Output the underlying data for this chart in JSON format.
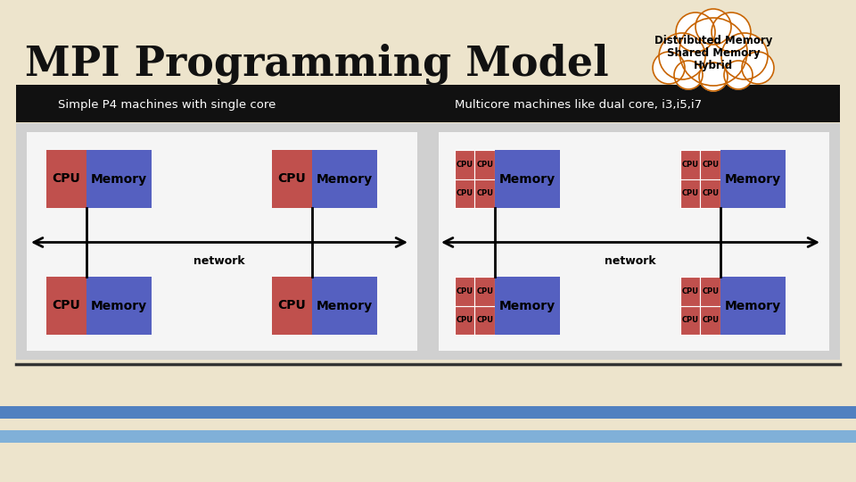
{
  "title": "MPI Programming Model",
  "cloud_lines": [
    "Distributed Memory",
    "Shared Memory",
    "Hybrid"
  ],
  "subtitle_left": "Simple P4 machines with single core",
  "subtitle_right": "Multicore machines like dual core, i3,i5,i7",
  "bg_color": "#ede4cc",
  "black_bar_color": "#111111",
  "panel_bg": "#d0d0d0",
  "white_panel": "#f5f5f5",
  "cpu_color": "#c0504d",
  "memory_color": "#5560c0",
  "title_color": "#111111",
  "subtitle_text_color": "#ffffff",
  "cloud_border_color": "#c86400",
  "cloud_fill": "#ffffff",
  "bottom_stripe_blue": "#5080c0",
  "bottom_stripe_light": "#80b0d8",
  "sep_line_color": "#333333"
}
